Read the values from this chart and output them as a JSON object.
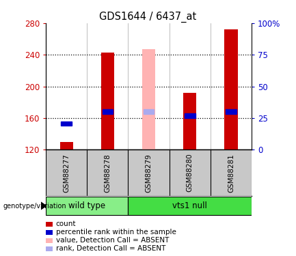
{
  "title": "GDS1644 / 6437_at",
  "samples": [
    "GSM88277",
    "GSM88278",
    "GSM88279",
    "GSM88280",
    "GSM88281"
  ],
  "bar_values": [
    130,
    243,
    247,
    192,
    272
  ],
  "bar_colors": [
    "#cc0000",
    "#cc0000",
    "#ffb3b3",
    "#cc0000",
    "#cc0000"
  ],
  "rank_values": [
    153,
    168,
    168,
    163,
    168
  ],
  "rank_colors": [
    "#0000cc",
    "#0000cc",
    "#aaaaee",
    "#0000cc",
    "#0000cc"
  ],
  "absent_flags": [
    false,
    false,
    true,
    false,
    false
  ],
  "ymin": 120,
  "ymax": 280,
  "yticks_left": [
    120,
    160,
    200,
    240,
    280
  ],
  "yticks_right": [
    0,
    25,
    50,
    75,
    100
  ],
  "yright_labels": [
    "0",
    "25",
    "50",
    "75",
    "100%"
  ],
  "groups": [
    {
      "label": "wild type",
      "samples": [
        0,
        1
      ],
      "color": "#88ee88"
    },
    {
      "label": "vts1 null",
      "samples": [
        2,
        3,
        4
      ],
      "color": "#44dd44"
    }
  ],
  "genotype_label": "genotype/variation",
  "legend_items": [
    {
      "label": "count",
      "color": "#cc0000"
    },
    {
      "label": "percentile rank within the sample",
      "color": "#0000cc"
    },
    {
      "label": "value, Detection Call = ABSENT",
      "color": "#ffb3b3"
    },
    {
      "label": "rank, Detection Call = ABSENT",
      "color": "#aaaaee"
    }
  ],
  "bar_width": 0.32,
  "left_color": "#cc0000",
  "right_color": "#0000cc",
  "label_area_color": "#c8c8c8",
  "plot_bg": "#ffffff"
}
